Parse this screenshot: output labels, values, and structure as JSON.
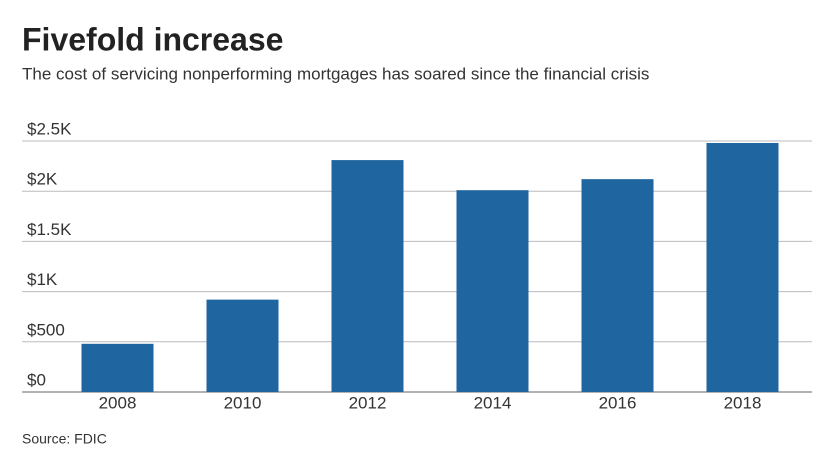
{
  "chart_data": {
    "type": "bar",
    "title": "Fivefold increase",
    "subtitle": "The cost of servicing nonperforming mortgages has soared since the financial crisis",
    "source": "Source: FDIC",
    "categories": [
      "2008",
      "2010",
      "2012",
      "2014",
      "2016",
      "2018"
    ],
    "values": [
      480,
      920,
      2310,
      2010,
      2120,
      2480
    ],
    "color": "#1f66a0",
    "ylim": [
      0,
      2500
    ],
    "yticks": [
      {
        "value": 0,
        "label": "$0"
      },
      {
        "value": 500,
        "label": "$500"
      },
      {
        "value": 1000,
        "label": "$1K"
      },
      {
        "value": 1500,
        "label": "$1.5K"
      },
      {
        "value": 2000,
        "label": "$2K"
      },
      {
        "value": 2500,
        "label": "$2.5K"
      }
    ],
    "grid": true
  }
}
